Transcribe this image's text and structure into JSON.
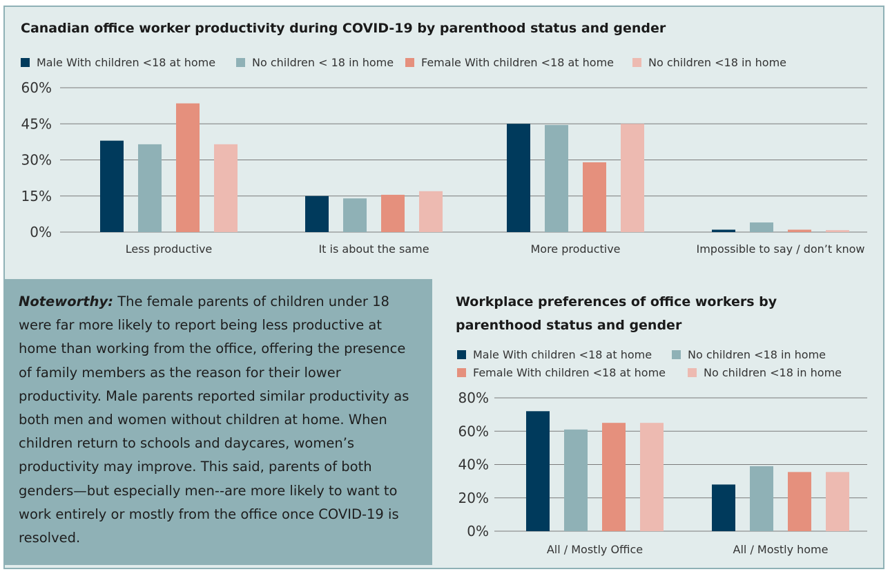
{
  "note": {
    "lead": "Noteworthy:",
    "body": "The female parents of children under 18 were far more likely to report being less productive at home than working from the office, offering the presence of family members as the reason for their lower productivity. Male parents reported similar productivity as both men and women without children at home. When children return to schools and daycares, women’s productivity may improve. This said, parents of both genders—but especially men--are more likely to want to work entirely or mostly from the office once COVID-19 is resolved."
  },
  "chart_data": [
    {
      "type": "bar",
      "title": "Canadian office worker productivity during COVID-19 by parenthood status and gender",
      "categories": [
        "Less productive",
        "It is about the same",
        "More productive",
        "Impossible to say / don’t know"
      ],
      "yticks": [
        "0%",
        "15%",
        "30%",
        "45%",
        "60%"
      ],
      "ylim": [
        0,
        60
      ],
      "grid": true,
      "legend_placement": "top",
      "series": [
        {
          "name": "Male With children <18 at home",
          "color": "#003a5c",
          "values": [
            38,
            15,
            45,
            1
          ]
        },
        {
          "name": "No children < 18 in home",
          "color": "#8fb1b6",
          "values": [
            36.5,
            14,
            44.5,
            4
          ]
        },
        {
          "name": "Female With children <18 at home",
          "color": "#e5907d",
          "values": [
            53.5,
            15.5,
            29,
            1
          ]
        },
        {
          "name": "No children <18 in home",
          "color": "#edbab1",
          "values": [
            36.5,
            17,
            45,
            0.8
          ]
        }
      ]
    },
    {
      "type": "bar",
      "title": "Workplace preferences of office workers by parenthood status and gender",
      "categories": [
        "All / Mostly Office",
        "All / Mostly home"
      ],
      "yticks": [
        "0%",
        "20%",
        "40%",
        "60%",
        "80%"
      ],
      "ylim": [
        0,
        80
      ],
      "grid": true,
      "legend_placement": "top",
      "series": [
        {
          "name": "Male With children <18 at home",
          "color": "#003a5c",
          "values": [
            72,
            28
          ]
        },
        {
          "name": "No children <18 in home",
          "color": "#8fb1b6",
          "values": [
            61,
            39
          ]
        },
        {
          "name": "Female With children <18 at home",
          "color": "#e5907d",
          "values": [
            65,
            35.5
          ]
        },
        {
          "name": "No children <18 in home",
          "color": "#edbab1",
          "values": [
            65,
            35.5
          ]
        }
      ]
    }
  ]
}
